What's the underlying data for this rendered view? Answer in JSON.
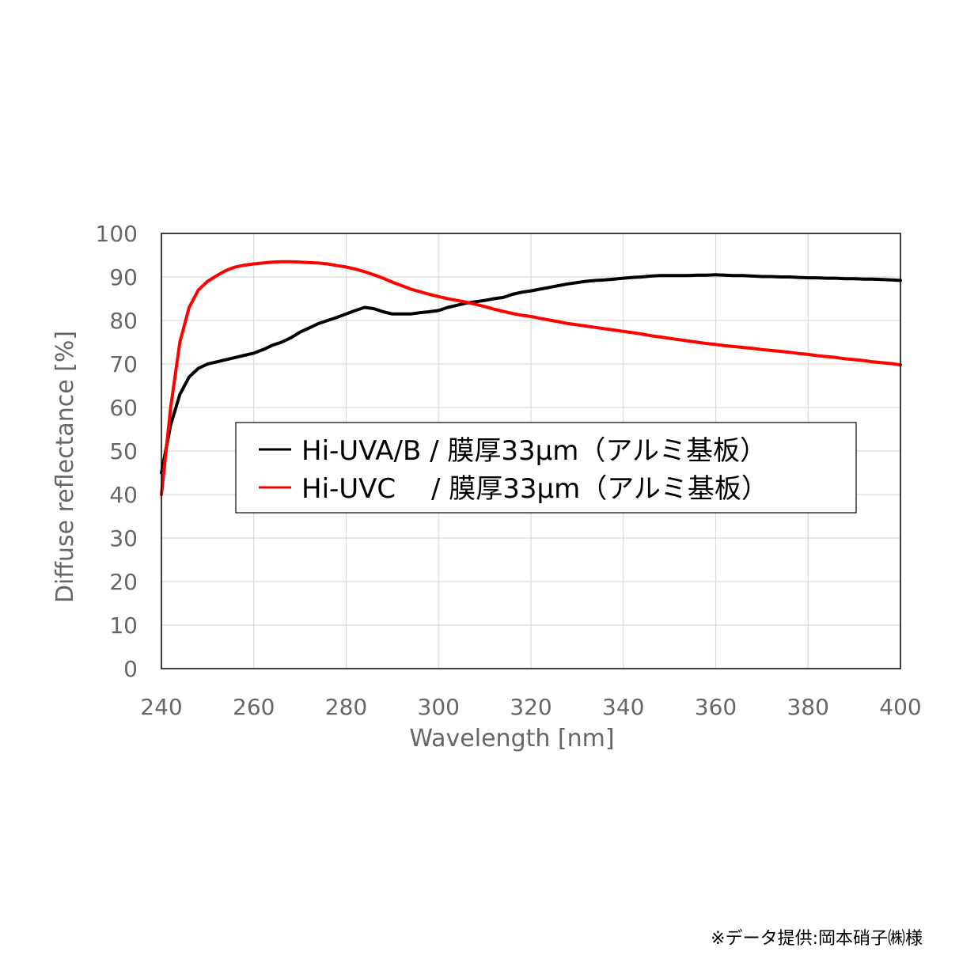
{
  "chart_data": {
    "type": "line",
    "xlabel": "Wavelength [nm]",
    "ylabel": "Diffuse reflectance [%]",
    "xlim": [
      240,
      400
    ],
    "ylim": [
      0,
      100
    ],
    "x_ticks": [
      240,
      260,
      280,
      300,
      320,
      340,
      360,
      380,
      400
    ],
    "y_ticks": [
      0,
      10,
      20,
      30,
      40,
      50,
      60,
      70,
      80,
      90,
      100
    ],
    "grid": true,
    "legend_position": "center",
    "series": [
      {
        "name": "Hi-UVA/B / 膜厚33μm（アルミ基板）",
        "color": "#000000",
        "x": [
          240,
          242,
          244,
          246,
          248,
          250,
          252,
          254,
          256,
          258,
          260,
          262,
          264,
          266,
          268,
          270,
          272,
          274,
          276,
          278,
          280,
          282,
          284,
          286,
          288,
          290,
          292,
          294,
          296,
          298,
          300,
          302,
          304,
          306,
          308,
          310,
          312,
          314,
          316,
          318,
          320,
          322,
          324,
          326,
          328,
          330,
          332,
          334,
          336,
          338,
          340,
          342,
          344,
          346,
          348,
          350,
          352,
          354,
          356,
          358,
          360,
          362,
          364,
          366,
          368,
          370,
          372,
          374,
          376,
          378,
          380,
          382,
          384,
          386,
          388,
          390,
          392,
          394,
          396,
          398,
          400
        ],
        "y": [
          45,
          56,
          63,
          67,
          69,
          70,
          70.5,
          71,
          71.5,
          72,
          72.5,
          73.3,
          74.3,
          75,
          76,
          77.3,
          78.3,
          79.3,
          80,
          80.7,
          81.5,
          82.3,
          83,
          82.7,
          82,
          81.5,
          81.5,
          81.5,
          81.8,
          82,
          82.3,
          83,
          83.5,
          84,
          84.3,
          84.6,
          85,
          85.3,
          86,
          86.5,
          86.8,
          87.2,
          87.6,
          88,
          88.4,
          88.7,
          89,
          89.2,
          89.3,
          89.5,
          89.7,
          89.9,
          90,
          90.2,
          90.3,
          90.3,
          90.3,
          90.3,
          90.4,
          90.4,
          90.5,
          90.4,
          90.3,
          90.3,
          90.2,
          90.1,
          90.1,
          90,
          90,
          89.9,
          89.8,
          89.8,
          89.7,
          89.7,
          89.6,
          89.6,
          89.5,
          89.5,
          89.4,
          89.3,
          89.2
        ]
      },
      {
        "name": "Hi-UVC　 / 膜厚33μm（アルミ基板）",
        "color": "#ff0000",
        "x": [
          240,
          242,
          244,
          246,
          248,
          250,
          252,
          254,
          256,
          258,
          260,
          262,
          264,
          266,
          268,
          270,
          272,
          274,
          276,
          278,
          280,
          282,
          284,
          286,
          288,
          290,
          292,
          294,
          296,
          298,
          300,
          302,
          304,
          306,
          308,
          310,
          312,
          314,
          316,
          318,
          320,
          322,
          324,
          326,
          328,
          330,
          332,
          334,
          336,
          338,
          340,
          342,
          344,
          346,
          348,
          350,
          352,
          354,
          356,
          358,
          360,
          362,
          364,
          366,
          368,
          370,
          372,
          374,
          376,
          378,
          380,
          382,
          384,
          386,
          388,
          390,
          392,
          394,
          396,
          398,
          400
        ],
        "y": [
          40,
          60,
          75,
          83,
          87,
          89,
          90.3,
          91.5,
          92.3,
          92.7,
          93,
          93.2,
          93.4,
          93.5,
          93.5,
          93.4,
          93.3,
          93.2,
          93,
          92.6,
          92.3,
          91.8,
          91.2,
          90.5,
          89.7,
          88.8,
          88,
          87.2,
          86.6,
          86,
          85.5,
          85,
          84.6,
          84.2,
          83.7,
          83.2,
          82.6,
          82.1,
          81.6,
          81.2,
          80.9,
          80.5,
          80.1,
          79.7,
          79.3,
          79,
          78.7,
          78.4,
          78.1,
          77.8,
          77.5,
          77.2,
          76.9,
          76.5,
          76.2,
          75.9,
          75.6,
          75.3,
          75,
          74.7,
          74.5,
          74.2,
          74,
          73.8,
          73.6,
          73.3,
          73.1,
          72.9,
          72.7,
          72.4,
          72.2,
          71.9,
          71.7,
          71.5,
          71.2,
          71,
          70.8,
          70.5,
          70.3,
          70.1,
          69.8
        ]
      }
    ]
  },
  "credit": "※データ提供:岡本硝子㈱様"
}
